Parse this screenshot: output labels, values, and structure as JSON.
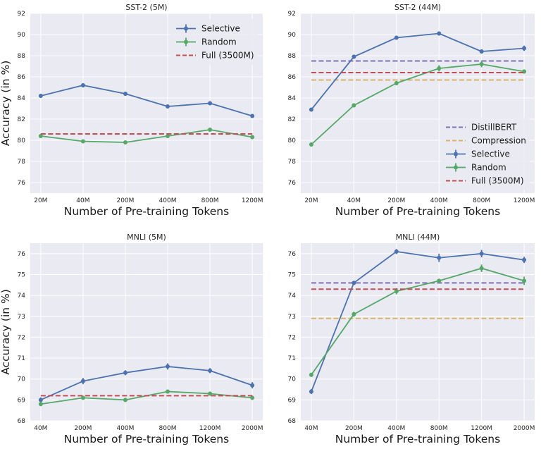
{
  "colors": {
    "selective": "#4c72b0",
    "random": "#55a868",
    "full": "#c44e52",
    "distillbert": "#8172b3",
    "compression": "#dab46a",
    "plot_bg": "#eaeaf2",
    "grid": "#ffffff"
  },
  "chart_data": [
    {
      "type": "line",
      "title": "SST-2 (5M)",
      "xlabel": "Number of Pre-training Tokens",
      "ylabel": "Accuracy (in %)",
      "categories": [
        "20M",
        "40M",
        "200M",
        "400M",
        "800M",
        "1200M"
      ],
      "ylim": [
        75,
        92
      ],
      "yticks": [
        76,
        78,
        80,
        82,
        84,
        86,
        88,
        90,
        92
      ],
      "legend_position": "top-right",
      "series": [
        {
          "name": "Selective",
          "kind": "errorbar",
          "color_key": "selective",
          "values": [
            84.2,
            85.2,
            84.4,
            83.2,
            83.5,
            82.3
          ],
          "errors": [
            0.2,
            0.2,
            0.2,
            0.15,
            0.2,
            0.15
          ]
        },
        {
          "name": "Random",
          "kind": "errorbar",
          "color_key": "random",
          "values": [
            80.4,
            79.9,
            79.8,
            80.4,
            81.0,
            80.3
          ],
          "errors": [
            0.2,
            0.15,
            0.15,
            0.15,
            0.15,
            0.15
          ]
        },
        {
          "name": "Full (3500M)",
          "kind": "hline",
          "color_key": "full",
          "value": 80.6
        }
      ]
    },
    {
      "type": "line",
      "title": "SST-2 (44M)",
      "xlabel": "Number of Pre-training Tokens",
      "ylabel": "",
      "categories": [
        "20M",
        "40M",
        "200M",
        "400M",
        "800M",
        "1200M"
      ],
      "ylim": [
        75,
        92
      ],
      "yticks": [
        76,
        78,
        80,
        82,
        84,
        86,
        88,
        90,
        92
      ],
      "legend_position": "lower-right",
      "series": [
        {
          "name": "DistillBERT",
          "kind": "hline",
          "color_key": "distillbert",
          "value": 87.5
        },
        {
          "name": "Compression",
          "kind": "hline",
          "color_key": "compression",
          "value": 85.7
        },
        {
          "name": "Selective",
          "kind": "errorbar",
          "color_key": "selective",
          "values": [
            82.9,
            87.9,
            89.7,
            90.1,
            88.4,
            88.7
          ],
          "errors": [
            0.15,
            0.2,
            0.15,
            0.2,
            0.2,
            0.25
          ]
        },
        {
          "name": "Random",
          "kind": "errorbar",
          "color_key": "random",
          "values": [
            79.6,
            83.3,
            85.4,
            86.8,
            87.2,
            86.5
          ],
          "errors": [
            0.15,
            0.2,
            0.2,
            0.3,
            0.3,
            0.2
          ]
        },
        {
          "name": "Full (3500M)",
          "kind": "hline",
          "color_key": "full",
          "value": 86.4
        }
      ]
    },
    {
      "type": "line",
      "title": "MNLI (5M)",
      "xlabel": "Number of Pre-training Tokens",
      "ylabel": "Accuracy (in %)",
      "categories": [
        "40M",
        "200M",
        "400M",
        "800M",
        "1200M",
        "2000M"
      ],
      "ylim": [
        68,
        76.5
      ],
      "yticks": [
        68,
        69,
        70,
        71,
        72,
        73,
        74,
        75,
        76
      ],
      "series": [
        {
          "name": "Selective",
          "kind": "errorbar",
          "color_key": "selective",
          "values": [
            69.0,
            69.9,
            70.3,
            70.6,
            70.4,
            69.7
          ],
          "errors": [
            0.12,
            0.15,
            0.12,
            0.15,
            0.12,
            0.15
          ]
        },
        {
          "name": "Random",
          "kind": "errorbar",
          "color_key": "random",
          "values": [
            68.8,
            69.1,
            69.0,
            69.4,
            69.3,
            69.1
          ],
          "errors": [
            0.1,
            0.08,
            0.1,
            0.08,
            0.08,
            0.1
          ]
        },
        {
          "name": "Full (3500M)",
          "kind": "hline",
          "color_key": "full",
          "value": 69.2
        }
      ]
    },
    {
      "type": "line",
      "title": "MNLI (44M)",
      "xlabel": "Number of Pre-training Tokens",
      "ylabel": "",
      "categories": [
        "40M",
        "200M",
        "400M",
        "800M",
        "1200M",
        "2000M"
      ],
      "ylim": [
        68,
        76.5
      ],
      "yticks": [
        68,
        69,
        70,
        71,
        72,
        73,
        74,
        75,
        76
      ],
      "series": [
        {
          "name": "DistillBERT",
          "kind": "hline",
          "color_key": "distillbert",
          "value": 74.6
        },
        {
          "name": "Compression",
          "kind": "hline",
          "color_key": "compression",
          "value": 72.9
        },
        {
          "name": "Selective",
          "kind": "errorbar",
          "color_key": "selective",
          "values": [
            69.4,
            74.6,
            76.1,
            75.8,
            76.0,
            75.7
          ],
          "errors": [
            0.12,
            0.1,
            0.12,
            0.2,
            0.18,
            0.15
          ]
        },
        {
          "name": "Random",
          "kind": "errorbar",
          "color_key": "random",
          "values": [
            70.2,
            73.1,
            74.2,
            74.7,
            75.3,
            74.7
          ],
          "errors": [
            0.1,
            0.12,
            0.15,
            0.1,
            0.18,
            0.2
          ]
        },
        {
          "name": "Full (3500M)",
          "kind": "hline",
          "color_key": "full",
          "value": 74.3
        }
      ]
    }
  ]
}
